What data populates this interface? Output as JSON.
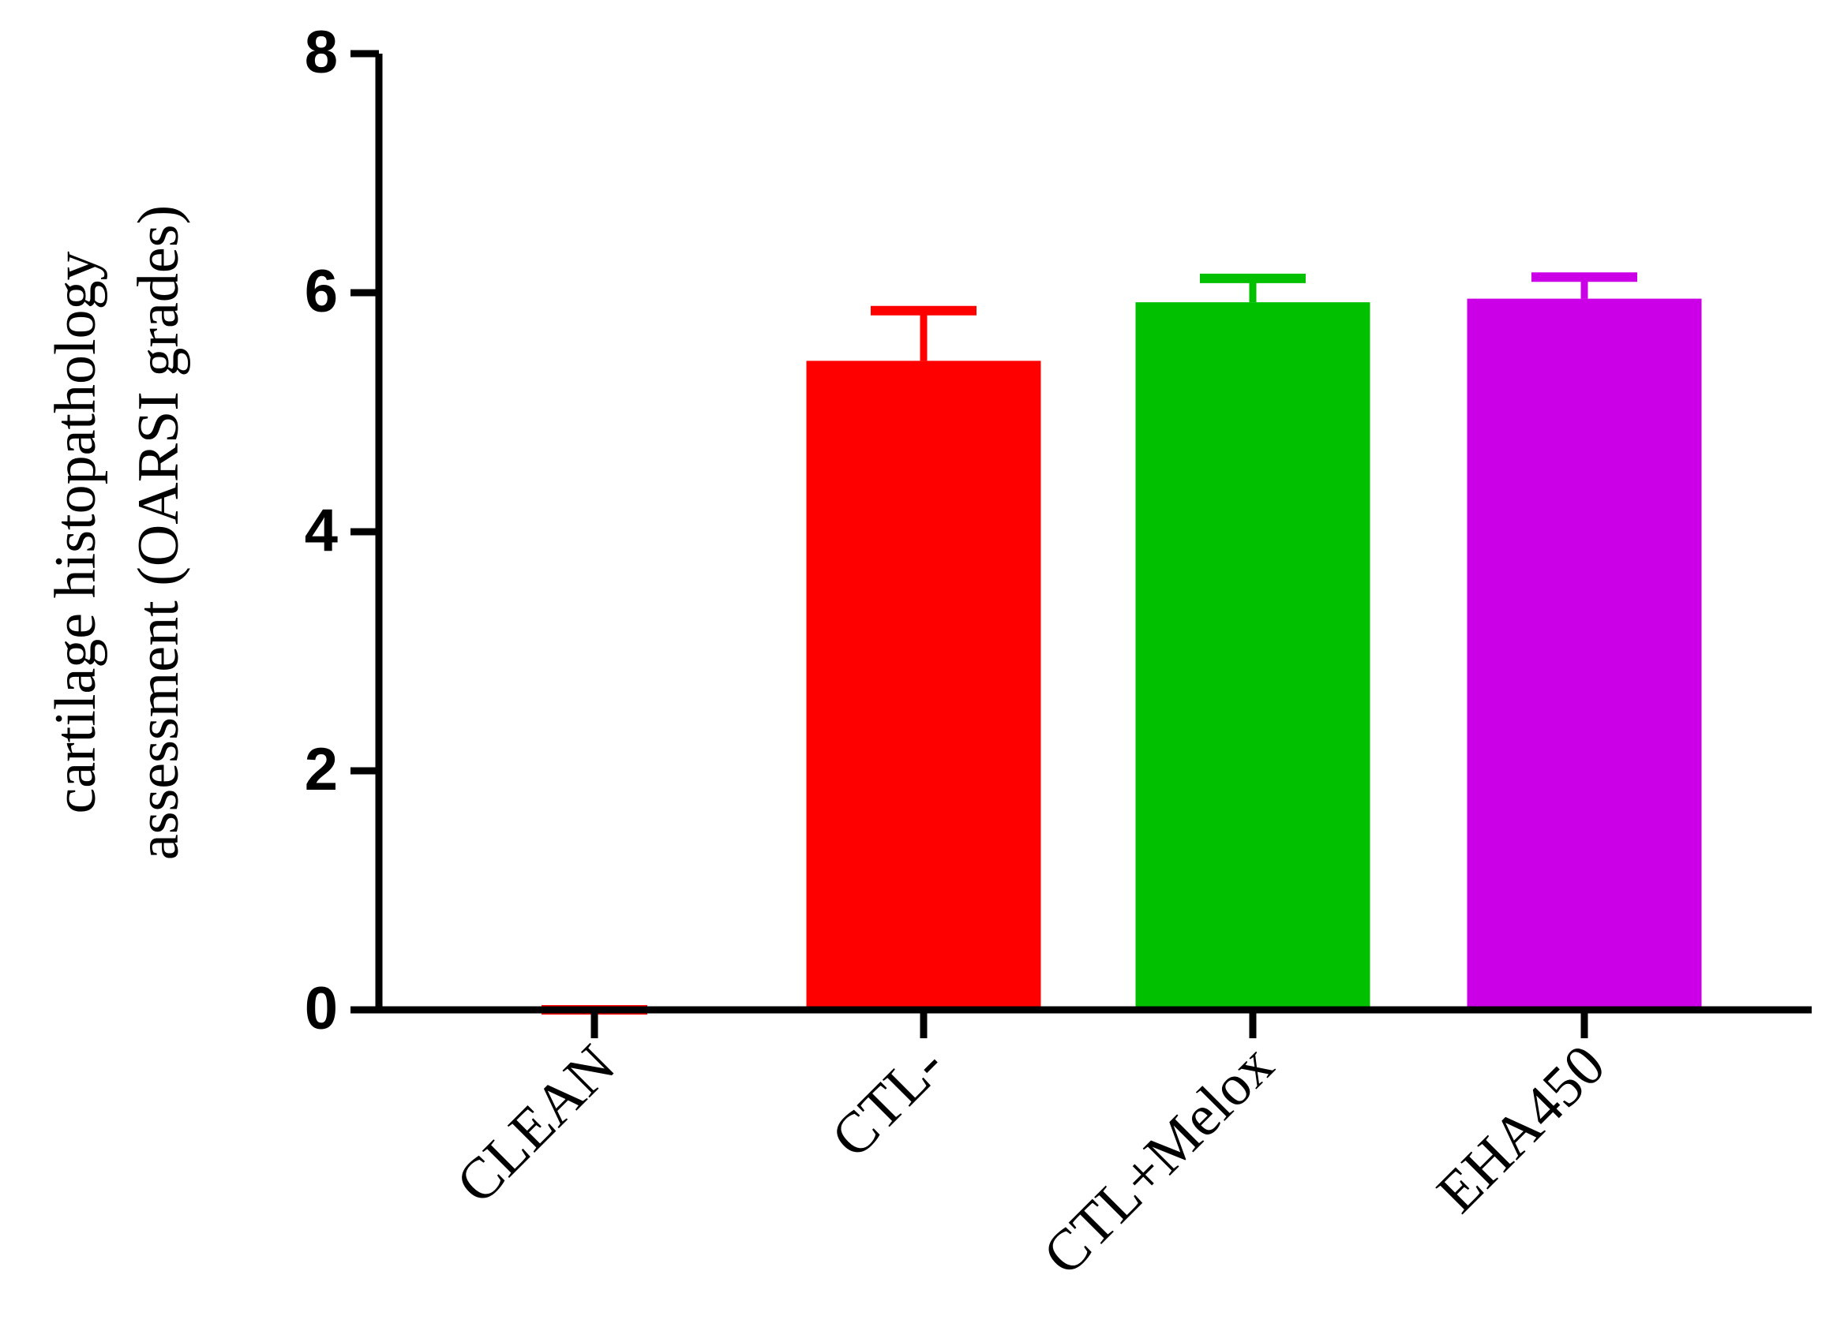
{
  "chart_data": {
    "type": "bar",
    "y_label": [
      "cartilage histopathology",
      "assessment (OARSI grades)"
    ],
    "categories": [
      "CLEAN",
      "CTL-",
      "CTL+Melox",
      "EHA450"
    ],
    "values": [
      0,
      5.43,
      5.92,
      5.95
    ],
    "errors": [
      0,
      0.42,
      0.2,
      0.18
    ],
    "colors": [
      "#ff0000",
      "#ff0000",
      "#00c000",
      "#cc00e6"
    ],
    "ylim": [
      0,
      8
    ],
    "yticks": [
      0,
      2,
      4,
      6,
      8
    ]
  }
}
